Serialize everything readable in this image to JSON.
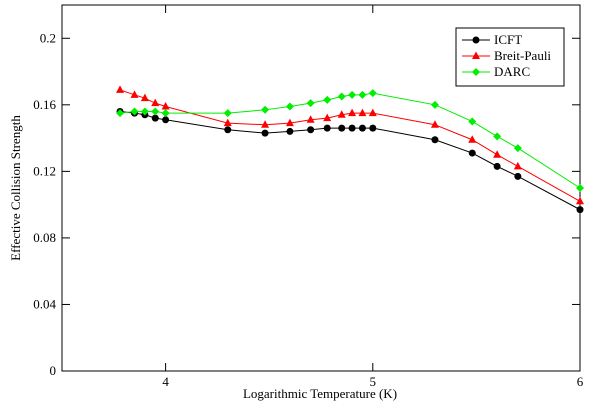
{
  "chart_data": {
    "type": "line",
    "xlabel": "Logarithmic Temperature (K)",
    "ylabel": "Effective Collision Strength",
    "x": [
      3.78,
      3.85,
      3.9,
      3.95,
      4.0,
      4.3,
      4.48,
      4.6,
      4.7,
      4.78,
      4.85,
      4.9,
      4.95,
      5.0,
      5.3,
      5.48,
      5.6,
      5.7,
      6.0
    ],
    "series": [
      {
        "name": "ICFT",
        "color": "#000000",
        "marker": "circle",
        "values": [
          0.156,
          0.155,
          0.154,
          0.152,
          0.151,
          0.145,
          0.143,
          0.144,
          0.145,
          0.146,
          0.146,
          0.146,
          0.146,
          0.146,
          0.139,
          0.131,
          0.123,
          0.117,
          0.097
        ]
      },
      {
        "name": "Breit-Pauli",
        "color": "#ff0000",
        "marker": "triangle",
        "values": [
          0.169,
          0.166,
          0.164,
          0.161,
          0.159,
          0.149,
          0.148,
          0.149,
          0.151,
          0.152,
          0.154,
          0.155,
          0.155,
          0.155,
          0.148,
          0.139,
          0.13,
          0.123,
          0.102
        ]
      },
      {
        "name": "DARC",
        "color": "#00ee00",
        "marker": "diamond",
        "values": [
          0.155,
          0.156,
          0.156,
          0.156,
          0.155,
          0.155,
          0.157,
          0.159,
          0.161,
          0.163,
          0.165,
          0.166,
          0.166,
          0.167,
          0.16,
          0.15,
          0.141,
          0.134,
          0.11
        ]
      }
    ],
    "xlim": [
      3.5,
      6
    ],
    "xticks": [
      4,
      5,
      6
    ],
    "ylim": [
      0,
      0.22
    ],
    "yticks": [
      0,
      0.04,
      0.08,
      0.12,
      0.16,
      0.2
    ],
    "legend": "upper right"
  }
}
